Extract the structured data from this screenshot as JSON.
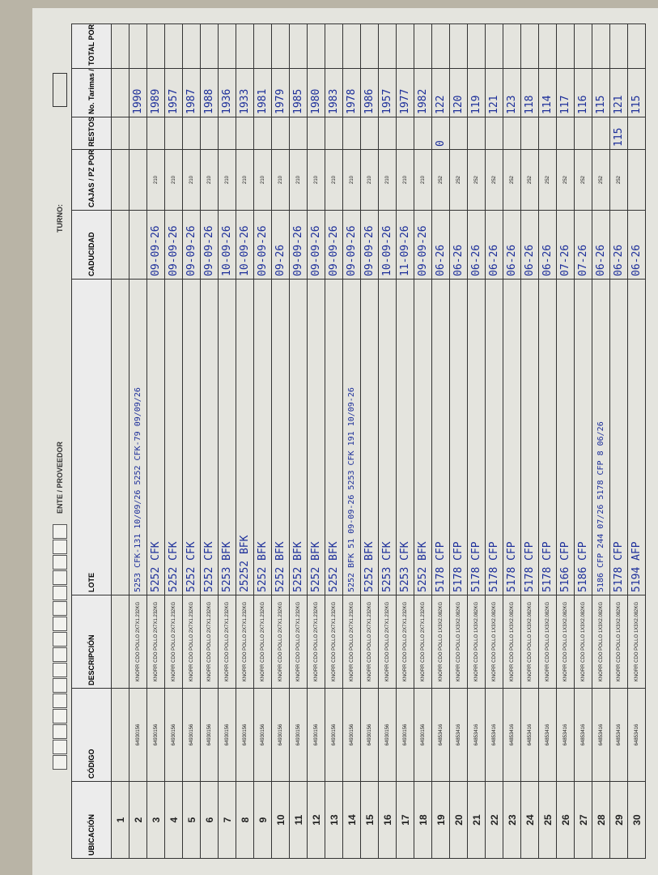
{
  "header": {
    "turno_label": "TURNO:",
    "proveedor_label": "ENTE / PROVEEDOR"
  },
  "table": {
    "columns": [
      "UBICACIÓN",
      "CÓDIGO",
      "DESCRIPCIÓN",
      "LOTE",
      "CADUCIDAD",
      "CAJAS / PZ POR PALLET",
      "RESTOS",
      "No. Tarimas / Consecutivo",
      "TOTAL POR CONSEC."
    ],
    "rows": [
      [
        "1",
        null,
        null,
        null,
        null,
        null,
        null,
        null,
        null
      ],
      [
        "2",
        "64930156",
        "KNORR CDO POLLO 2X7X1.232KG",
        "5253 CFK-131 10/09/26 5252 CFK-79 09/09/26",
        null,
        null,
        null,
        "1990",
        null
      ],
      [
        "3",
        "64930156",
        "KNORR CDO POLLO 2X7X1.232KG",
        "5252 CFK",
        "09-09-26",
        "210",
        null,
        "1989",
        null
      ],
      [
        "4",
        "64930156",
        "KNORR CDO POLLO 2X7X1.232KG",
        "5252 CFK",
        "09-09-26",
        "210",
        null,
        "1957",
        null
      ],
      [
        "5",
        "64930156",
        "KNORR CDO POLLO 2X7X1.232KG",
        "5252 CFK",
        "09-09-26",
        "210",
        null,
        "1987",
        null
      ],
      [
        "6",
        "64930156",
        "KNORR CDO POLLO 2X7X1.232KG",
        "5252 CFK",
        "09-09-26",
        "210",
        null,
        "1988",
        null
      ],
      [
        "7",
        "64930156",
        "KNORR CDO POLLO 2X7X1.232KG",
        "5253 BFK",
        "10-09-26",
        "210",
        null,
        "1936",
        null
      ],
      [
        "8",
        "64930156",
        "KNORR CDO POLLO 2X7X1.232KG",
        "25252 BFK",
        "10-09-26",
        "210",
        null,
        "1933",
        null
      ],
      [
        "9",
        "64930156",
        "KNORR CDO POLLO 2X7X1.232KG",
        "5252 BFK",
        "09-09-26",
        "210",
        null,
        "1981",
        null
      ],
      [
        "10",
        "64930156",
        "KNORR CDO POLLO 2X7X1.232KG",
        "5252 BFK",
        "09-26",
        "210",
        null,
        "1979",
        null
      ],
      [
        "11",
        "64930156",
        "KNORR CDO POLLO 2X7X1.232KG",
        "5252 BFK",
        "09-09-26",
        "210",
        null,
        "1985",
        null
      ],
      [
        "12",
        "64930156",
        "KNORR CDO POLLO 2X7X1.232KG",
        "5252 BFK",
        "09-09-26",
        "210",
        null,
        "1980",
        null
      ],
      [
        "13",
        "64930156",
        "KNORR CDO POLLO 2X7X1.232KG",
        "5252 BFK",
        "09-09-26",
        "210",
        null,
        "1983",
        null
      ],
      [
        "14",
        "64930156",
        "KNORR CDO POLLO 2X7X1.232KG",
        "5252 BFK 51 09-09-26 5253 CFK 191 10/09-26",
        "09-09-26",
        "210",
        null,
        "1978",
        null
      ],
      [
        "15",
        "64930156",
        "KNORR CDO POLLO 2X7X1.232KG",
        "5252 BFK",
        "09-09-26",
        "210",
        null,
        "1986",
        null
      ],
      [
        "16",
        "64930156",
        "KNORR CDO POLLO 2X7X1.232KG",
        "5253 CFK",
        "10-09-26",
        "210",
        null,
        "1957",
        null
      ],
      [
        "17",
        "64930156",
        "KNORR CDO POLLO 2X7X1.232KG",
        "5253 CFK",
        "11-09-26",
        "210",
        null,
        "1977",
        null
      ],
      [
        "18",
        "64930156",
        "KNORR CDO POLLO 2X7X1.232KG",
        "5252 BFK",
        "09-09-26",
        "210",
        null,
        "1982",
        null
      ],
      [
        "19",
        "64853416",
        "KNORR CDO POLLO 1X3X2.082KG",
        "5178 CFP",
        "06-26",
        "252",
        "0",
        "122",
        null
      ],
      [
        "20",
        "64853416",
        "KNORR CDO POLLO 1X3X2.082KG",
        "5178 CFP",
        "06-26",
        "252",
        null,
        "120",
        null
      ],
      [
        "21",
        "64853416",
        "KNORR CDO POLLO 1X3X2.082KG",
        "5178 CFP",
        "06-26",
        "252",
        null,
        "119",
        null
      ],
      [
        "22",
        "64853416",
        "KNORR CDO POLLO 1X3X2.082KG",
        "5178 CFP",
        "06-26",
        "252",
        null,
        "121",
        null
      ],
      [
        "23",
        "64853416",
        "KNORR CDO POLLO 1X3X2.082KG",
        "5178 CFP",
        "06-26",
        "252",
        null,
        "123",
        null
      ],
      [
        "24",
        "64853416",
        "KNORR CDO POLLO 1X3X2.082KG",
        "5178 CFP",
        "06-26",
        "252",
        null,
        "118",
        null
      ],
      [
        "25",
        "64853416",
        "KNORR CDO POLLO 1X3X2.082KG",
        "5178 CFP",
        "06-26",
        "252",
        null,
        "114",
        null
      ],
      [
        "26",
        "64853416",
        "KNORR CDO POLLO 1X3X2.082KG",
        "5166 CFP",
        "07-26",
        "252",
        null,
        "117",
        null
      ],
      [
        "27",
        "64853416",
        "KNORR CDO POLLO 1X3X2.082KG",
        "5186 CFP",
        "07-26",
        "252",
        null,
        "116",
        null
      ],
      [
        "28",
        "64853416",
        "KNORR CDO POLLO 1X3X2.082KG",
        "5186 CFP 244 07/26 5178 CFP 8 06/26",
        "06-26",
        "252",
        null,
        "115",
        null
      ],
      [
        "29",
        "64853416",
        "KNORR CDO POLLO 1X3X2.082KG",
        "5178 CFP",
        "06-26",
        "252",
        "115",
        "121",
        null
      ],
      [
        "30",
        "64853416",
        "KNORR CDO POLLO 1X3X2.082KG",
        "5194 AFP",
        "06-26",
        null,
        null,
        "115",
        null
      ]
    ]
  }
}
